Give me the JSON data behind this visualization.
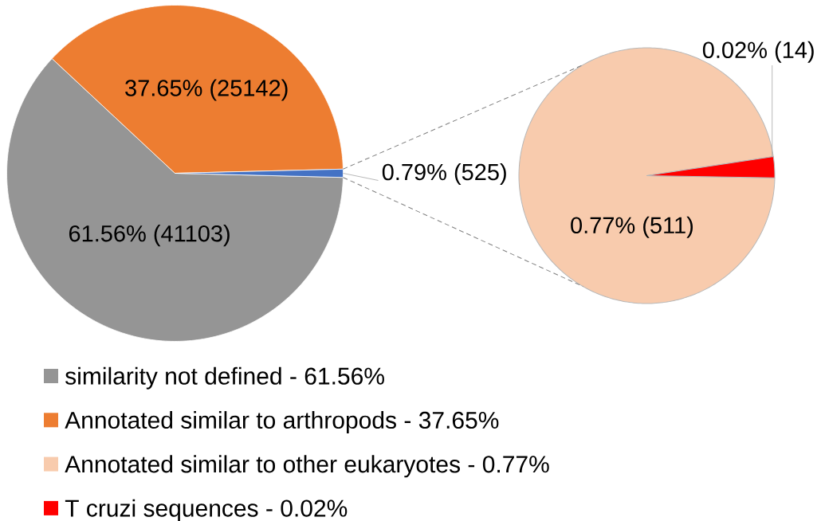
{
  "chart_data": [
    {
      "type": "pie",
      "categories": [
        "similarity not defined - 61.56%",
        "Annotated similar to arthropods - 37.65%",
        null
      ],
      "values": [
        41103,
        25142,
        525
      ],
      "colors": [
        "#959595",
        "#ed7d31",
        "#4472c4"
      ],
      "value_labels": [
        "61.56% (41103)",
        "37.65% (25142)",
        "0.79% (525)"
      ],
      "legend": "bottom"
    },
    {
      "type": "pie",
      "categories": [
        "Annotated similar to other eukaryotes - 0.77%",
        "T cruzi sequences - 0.02%"
      ],
      "values": [
        511,
        14
      ],
      "colors": [
        "#f8cbad",
        "#ff0000"
      ],
      "value_labels": [
        "0.77% (511)",
        "0.02% (14)"
      ],
      "legend": "bottom"
    }
  ]
}
